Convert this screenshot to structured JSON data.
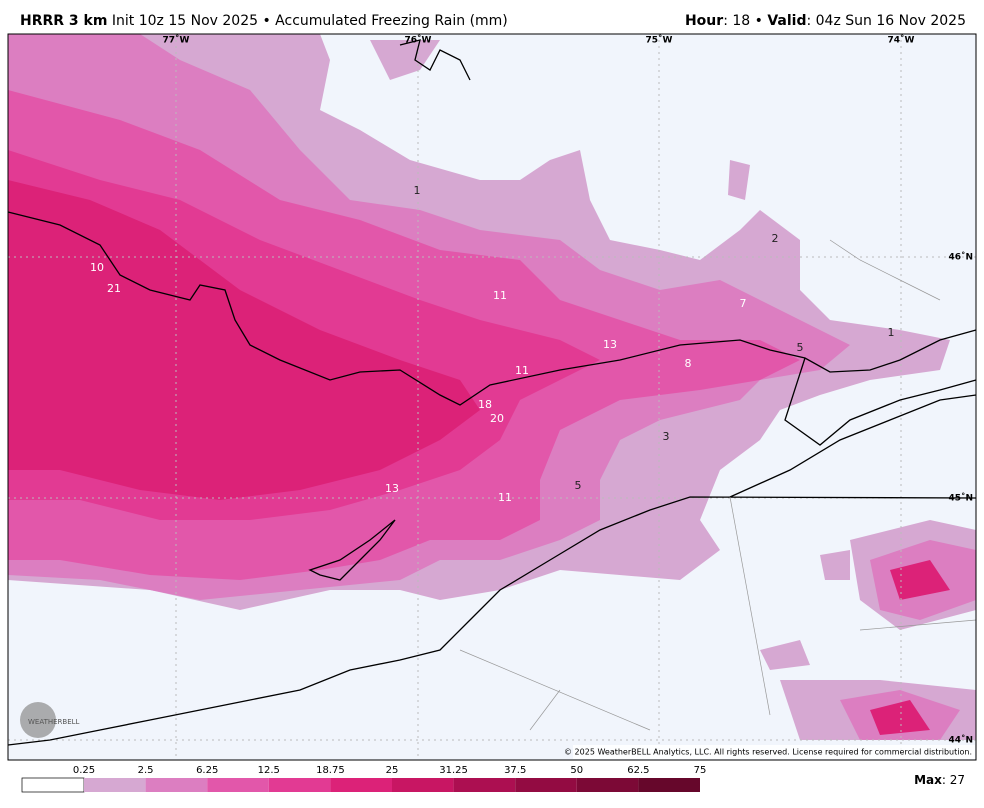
{
  "header": {
    "model": "HRRR 3 km",
    "init": "Init 10z 15 Nov 2025 • Accumulated Freezing Rain (mm)",
    "hour_label": "Hour",
    "hour": ": 18 • ",
    "valid_label": "Valid",
    "valid": ": 04z Sun 16 Nov 2025"
  },
  "lon_labels": [
    "77˚W",
    "76˚W",
    "75˚W",
    "74˚W"
  ],
  "lat_labels": [
    "46˚N",
    "45˚N",
    "44˚N"
  ],
  "point_labels": [
    1,
    2,
    10,
    21,
    11,
    7,
    13,
    1,
    5,
    8,
    11,
    18,
    20,
    3,
    13,
    11,
    5
  ],
  "copyright": "© 2025 WeatherBELL Analytics, LLC. All rights reserved. License required for commercial distribution.",
  "logo": "WEATHERBELL",
  "legend": {
    "ticks": [
      0.25,
      2.5,
      6.25,
      12.5,
      18.75,
      25,
      31.25,
      37.5,
      50,
      62.5,
      75
    ],
    "colors": [
      "#ffffff",
      "#d6a8d2",
      "#dc7ec1",
      "#e257aa",
      "#e23a93",
      "#dc2278",
      "#c81663",
      "#ac0f51",
      "#930b42",
      "#7c0936",
      "#66072b"
    ]
  },
  "max": {
    "label": "Max",
    "value": ": 27"
  }
}
